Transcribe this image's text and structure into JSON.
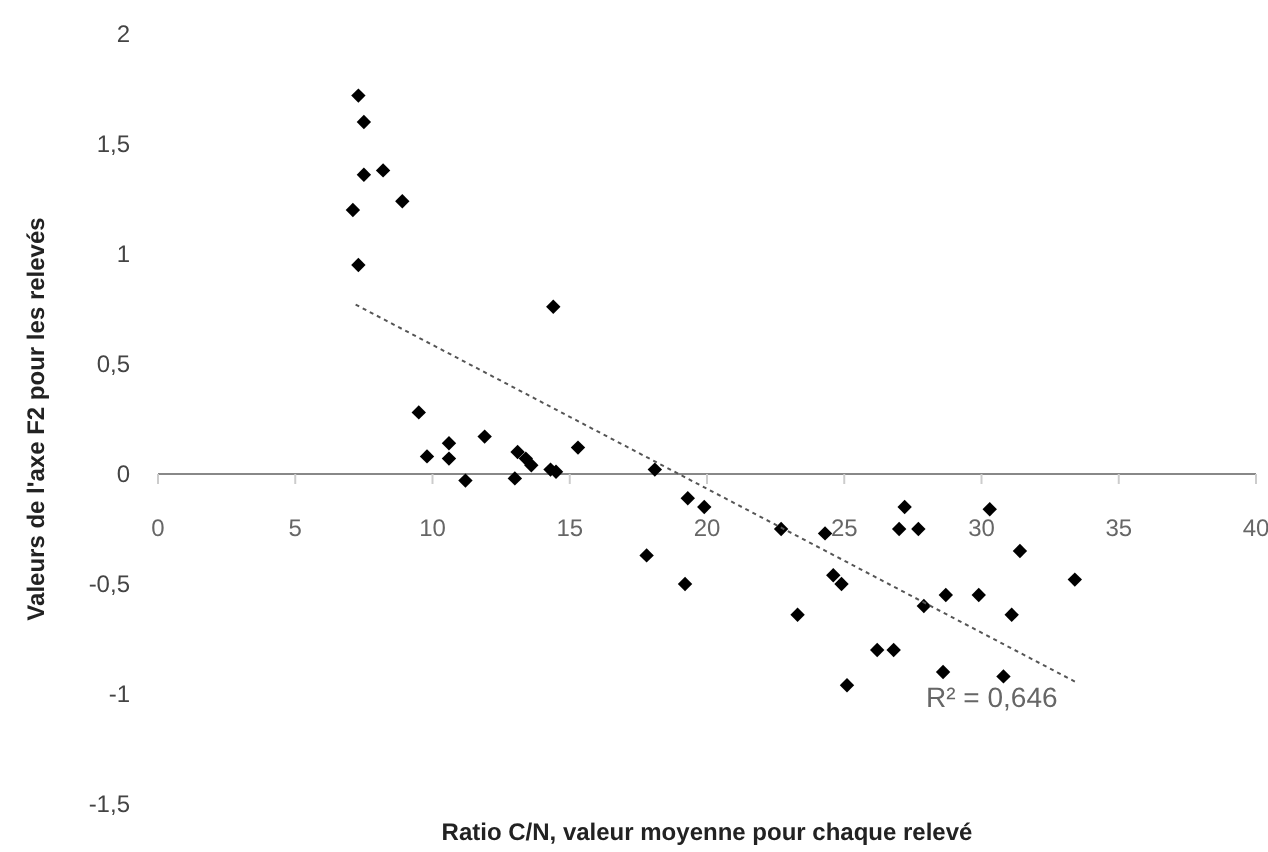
{
  "chart_data": {
    "type": "scatter",
    "xlabel": "Ratio C/N, valeur moyenne pour chaque relevé",
    "ylabel": "Valeurs de l'axe F2 pour les relevés",
    "marker": "diamond",
    "grid": false,
    "xlim": [
      0,
      40
    ],
    "xticks": [
      0,
      5,
      10,
      15,
      20,
      25,
      30,
      35,
      40
    ],
    "ylim": [
      -1.5,
      2
    ],
    "yticks": [
      {
        "value": -1.5,
        "label": "-1,5"
      },
      {
        "value": -1,
        "label": "-1"
      },
      {
        "value": -0.5,
        "label": "-0,5"
      },
      0,
      {
        "value": 0.5,
        "label": "0,5"
      },
      1,
      {
        "value": 1.5,
        "label": "1,5"
      },
      2
    ],
    "annotations": [
      "R² = 0,646"
    ],
    "series": [
      {
        "type": "scatter",
        "color": "#000000",
        "x": [
          7.3,
          7.5,
          7.5,
          8.2,
          7.1,
          8.9,
          7.3,
          14.4,
          9.5,
          9.8,
          10.6,
          10.6,
          11.2,
          11.9,
          13.0,
          13.1,
          13.4,
          13.6,
          14.3,
          14.5,
          15.3,
          18.1,
          19.3,
          19.9,
          17.8,
          22.7,
          24.3,
          27.2,
          27.0,
          27.7,
          30.3,
          31.4,
          24.6,
          24.9,
          23.3,
          27.9,
          28.7,
          29.9,
          31.1,
          33.4,
          26.2,
          26.8,
          25.1,
          28.6,
          30.8,
          19.2
        ],
        "values": [
          1.72,
          1.6,
          1.36,
          1.38,
          1.2,
          1.24,
          0.95,
          0.76,
          0.28,
          0.08,
          0.14,
          0.07,
          -0.03,
          0.17,
          -0.02,
          0.1,
          0.07,
          0.04,
          0.02,
          0.01,
          0.12,
          0.02,
          -0.11,
          -0.15,
          -0.37,
          -0.25,
          -0.27,
          -0.15,
          -0.25,
          -0.25,
          -0.16,
          -0.35,
          -0.46,
          -0.5,
          -0.64,
          -0.6,
          -0.55,
          -0.55,
          -0.64,
          -0.48,
          -0.8,
          -0.8,
          -0.96,
          -0.9,
          -0.92,
          -0.5
        ]
      },
      {
        "type": "line",
        "color": "#555555",
        "line_style": "dotted",
        "marker": "none",
        "x": [
          7.2,
          33.5
        ],
        "values": [
          0.77,
          -0.95
        ]
      }
    ]
  }
}
